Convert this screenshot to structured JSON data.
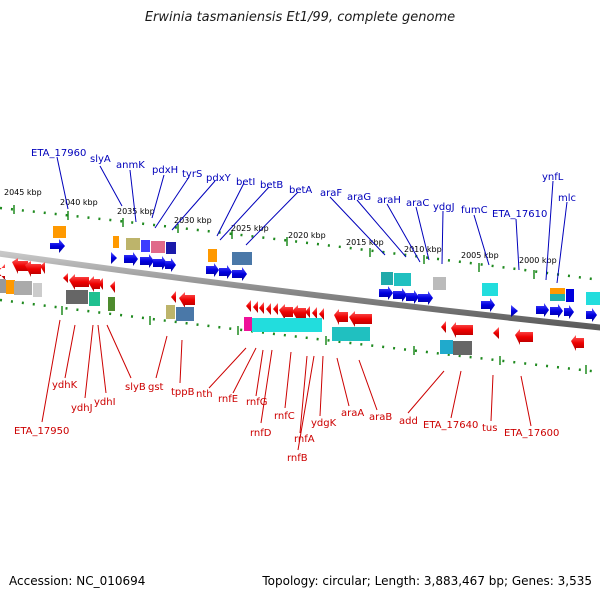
{
  "title": "Erwinia tasmaniensis Et1/99, complete genome",
  "footer": {
    "accession": "Accession: NC_010694",
    "topology": "Topology: circular; Length: 3,883,467 bp; Genes: 3,535"
  },
  "scale_labels": [
    "2045 kbp",
    "2040 kbp",
    "2035 kbp",
    "2030 kbp",
    "2025 kbp",
    "2020 kbp",
    "2015 kbp",
    "2010 kbp",
    "2005 kbp",
    "2000 kbp"
  ],
  "forward_strand_genes": [
    "ETA_17960",
    "slyA",
    "anmK",
    "pdxH",
    "tyrS",
    "pdxY",
    "betI",
    "betB",
    "betA",
    "araF",
    "araG",
    "araH",
    "araC",
    "ydgJ",
    "fumC",
    "ETA_17610",
    "ynfL",
    "mlc"
  ],
  "reverse_strand_genes": [
    "ETA_17950",
    "ydhK",
    "ydhJ",
    "ydhI",
    "slyB",
    "gst",
    "tppB",
    "nth",
    "rnfE",
    "rnfG",
    "rnfD",
    "rnfC",
    "rnfA",
    "rnfB",
    "ydgK",
    "araA",
    "araB",
    "add",
    "ETA_17640",
    "tus",
    "ETA_17600"
  ],
  "colors": {
    "forward_label": "#0000bb",
    "reverse_label": "#cc0000",
    "forward_gene": "#0000e0",
    "reverse_gene": "#ee0000",
    "tick": "#1f8a1f",
    "backbone": "#8a8a8a"
  }
}
